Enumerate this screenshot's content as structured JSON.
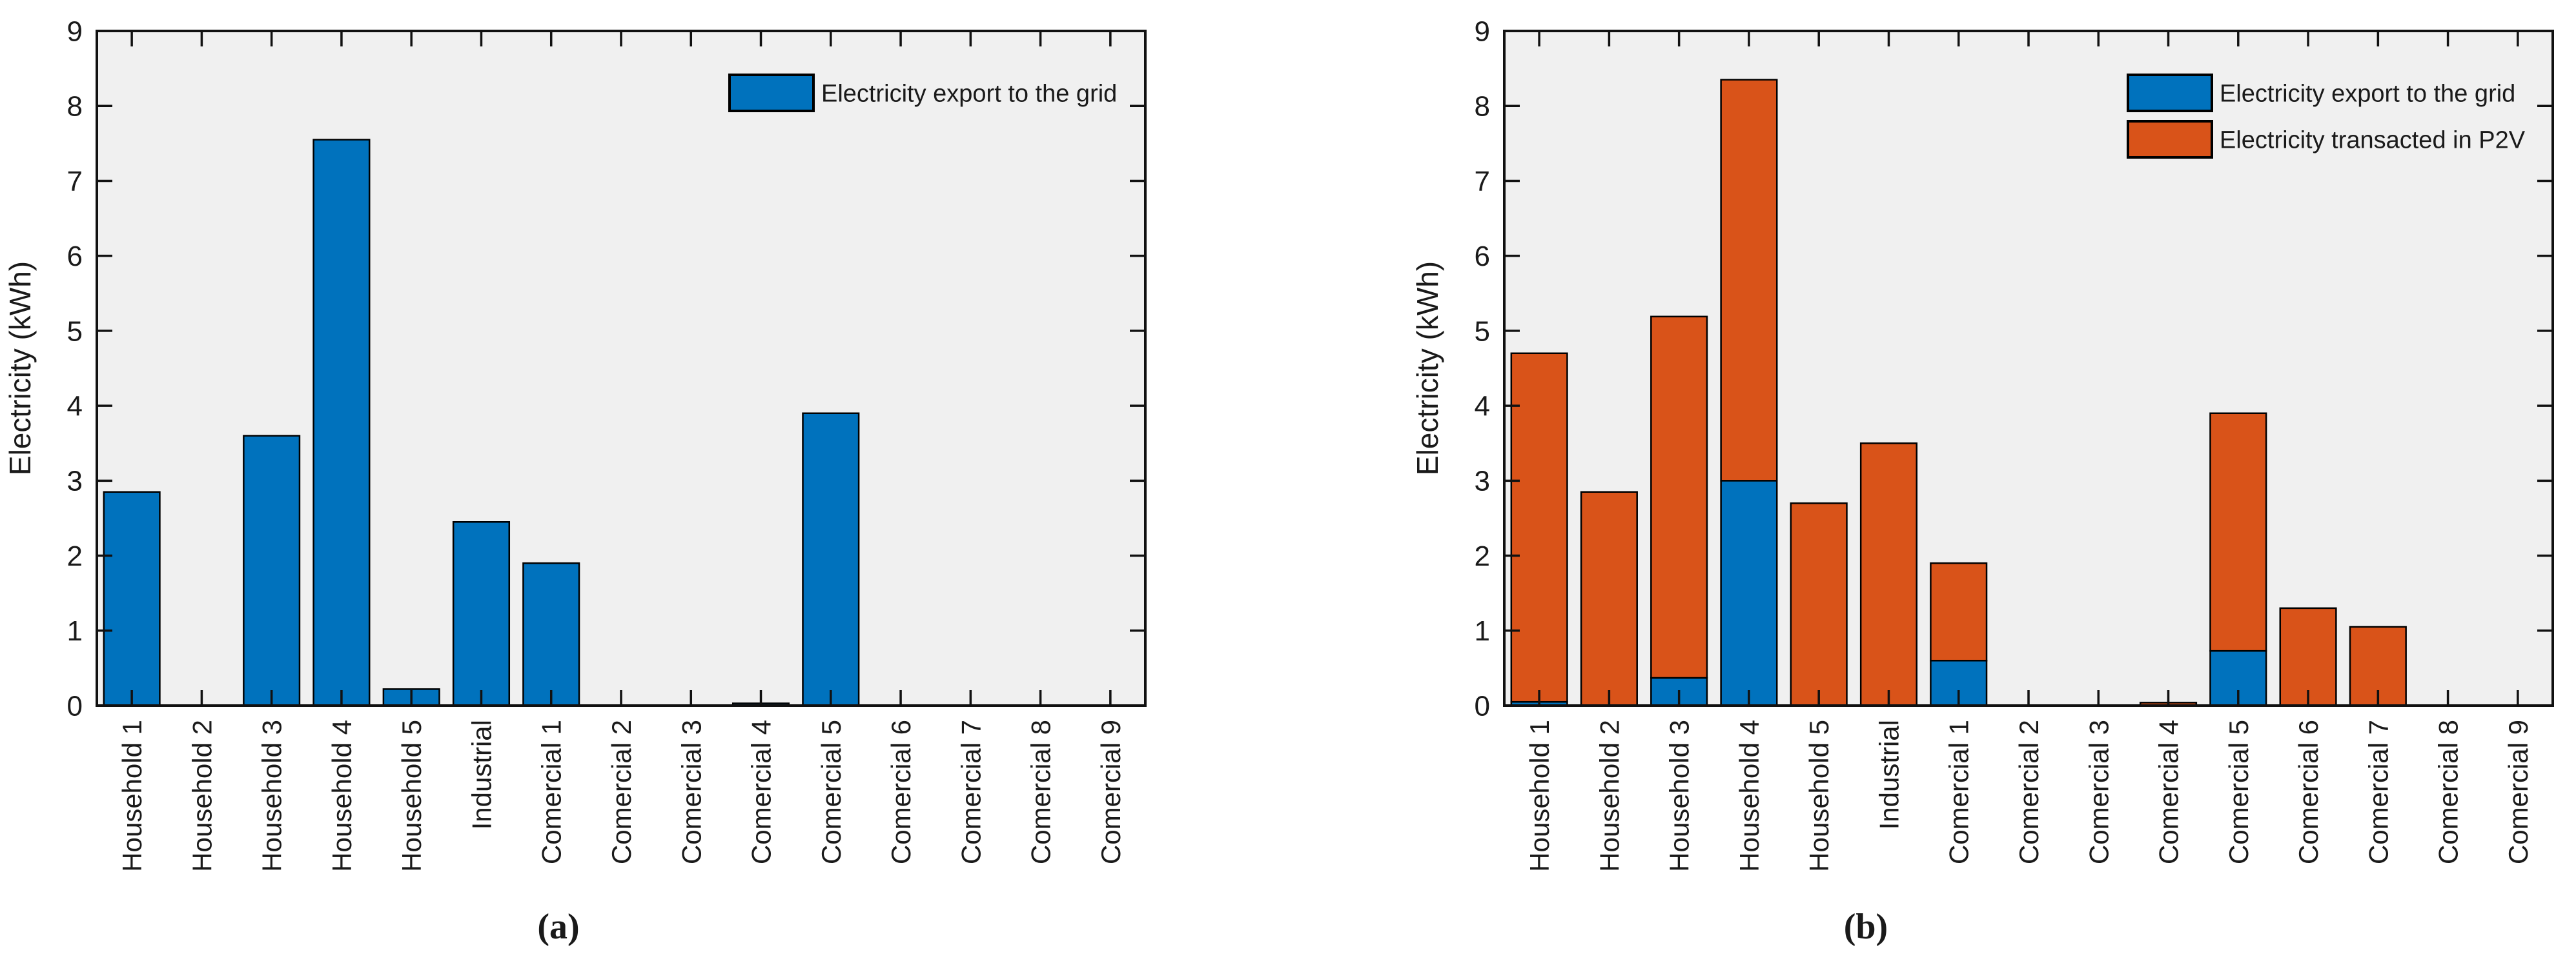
{
  "figure": {
    "background": "#ffffff",
    "plot_background": "#f0f0f0",
    "axis_color": "#111111",
    "text_color": "#1a1a1a",
    "accent_blue": "#0072BD",
    "accent_orange": "#D95319"
  },
  "chart_data": [
    {
      "type": "bar",
      "panel": "a",
      "caption": "(a)",
      "title": "",
      "xlabel": "",
      "ylabel": "Electricity (kWh)",
      "ylim": [
        0,
        9
      ],
      "y_ticks": [
        0,
        1,
        2,
        3,
        4,
        5,
        6,
        7,
        8,
        9
      ],
      "grid": false,
      "stacked": false,
      "legend_position": "top-right",
      "legend_frame": false,
      "categories": [
        "Household 1",
        "Household 2",
        "Household 3",
        "Household 4",
        "Household 5",
        "Industrial",
        "Comercial 1",
        "Comercial 2",
        "Comercial 3",
        "Comercial 4",
        "Comercial 5",
        "Comercial 6",
        "Comercial 7",
        "Comercial 8",
        "Comercial 9"
      ],
      "series": [
        {
          "name": "Electricity export to the grid",
          "color": "#0072BD",
          "values": [
            2.85,
            0,
            3.6,
            7.55,
            0.22,
            2.45,
            1.9,
            0,
            0,
            0.03,
            3.9,
            0,
            0,
            0,
            0
          ]
        }
      ]
    },
    {
      "type": "bar",
      "panel": "b",
      "caption": "(b)",
      "title": "",
      "xlabel": "",
      "ylabel": "Electricity (kWh)",
      "ylim": [
        0,
        9
      ],
      "y_ticks": [
        0,
        1,
        2,
        3,
        4,
        5,
        6,
        7,
        8,
        9
      ],
      "grid": false,
      "stacked": true,
      "legend_position": "top-right",
      "legend_frame": false,
      "categories": [
        "Household 1",
        "Household 2",
        "Household 3",
        "Household 4",
        "Household 5",
        "Industrial",
        "Comercial 1",
        "Comercial 2",
        "Comercial 3",
        "Comercial 4",
        "Comercial 5",
        "Comercial 6",
        "Comercial 7",
        "Comercial 8",
        "Comercial 9"
      ],
      "series": [
        {
          "name": "Electricity export to the grid",
          "color": "#0072BD",
          "values": [
            0.05,
            0,
            0.37,
            3.0,
            0,
            0,
            0.6,
            0,
            0,
            0,
            0.73,
            0,
            0,
            0,
            0
          ]
        },
        {
          "name": "Electricity transacted in P2V",
          "color": "#D95319",
          "values": [
            4.65,
            2.85,
            4.82,
            5.35,
            2.7,
            3.5,
            1.3,
            0,
            0,
            0.04,
            3.17,
            1.3,
            1.05,
            0,
            0
          ]
        }
      ]
    }
  ]
}
